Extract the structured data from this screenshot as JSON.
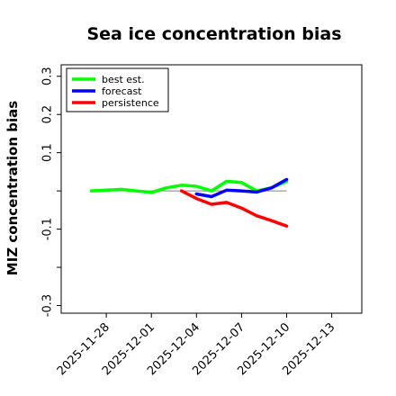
{
  "chart_data": {
    "type": "line",
    "title": "Sea ice concentration bias",
    "xlabel": "",
    "ylabel": "MIZ concentration bias",
    "x_ticks": [
      "2025-11-28",
      "2025-12-01",
      "2025-12-04",
      "2025-12-07",
      "2025-12-10",
      "2025-12-13"
    ],
    "x_tick_colors": [
      "#000000",
      "#000000",
      "#228b22",
      "#000000",
      "#000000",
      "#000000"
    ],
    "y_ticks": [
      -0.3,
      -0.2,
      -0.1,
      0.0,
      0.1,
      0.2,
      0.3
    ],
    "y_tick_labels": [
      "-0.3",
      "",
      "-0.1",
      "",
      "0.1",
      "0.2",
      "0.3"
    ],
    "xlim": [
      "2025-11-25",
      "2025-12-15"
    ],
    "ylim": [
      -0.32,
      0.33
    ],
    "reference_line": 0.0,
    "grid": false,
    "legend_position": "top-left",
    "series": [
      {
        "name": "best est.",
        "color": "#00ff00",
        "points": [
          [
            "2025-11-27",
            0.0
          ],
          [
            "2025-11-28",
            0.002
          ],
          [
            "2025-11-29",
            0.004
          ],
          [
            "2025-11-30",
            0.0
          ],
          [
            "2025-12-01",
            -0.004
          ],
          [
            "2025-12-02",
            0.008
          ],
          [
            "2025-12-03",
            0.015
          ],
          [
            "2025-12-04",
            0.012
          ],
          [
            "2025-12-05",
            0.0
          ],
          [
            "2025-12-06",
            0.025
          ],
          [
            "2025-12-07",
            0.022
          ],
          [
            "2025-12-08",
            0.0
          ],
          [
            "2025-12-09",
            0.008
          ],
          [
            "2025-12-10",
            0.025
          ]
        ]
      },
      {
        "name": "forecast",
        "color": "#0000ff",
        "points": [
          [
            "2025-12-04",
            -0.008
          ],
          [
            "2025-12-05",
            -0.015
          ],
          [
            "2025-12-06",
            0.002
          ],
          [
            "2025-12-07",
            0.0
          ],
          [
            "2025-12-08",
            -0.003
          ],
          [
            "2025-12-09",
            0.008
          ],
          [
            "2025-12-10",
            0.03
          ]
        ]
      },
      {
        "name": "persistence",
        "color": "#ff0000",
        "points": [
          [
            "2025-12-03",
            0.0
          ],
          [
            "2025-12-04",
            -0.02
          ],
          [
            "2025-12-05",
            -0.035
          ],
          [
            "2025-12-06",
            -0.03
          ],
          [
            "2025-12-07",
            -0.045
          ],
          [
            "2025-12-08",
            -0.065
          ],
          [
            "2025-12-09",
            -0.078
          ],
          [
            "2025-12-10",
            -0.092
          ]
        ]
      }
    ]
  }
}
